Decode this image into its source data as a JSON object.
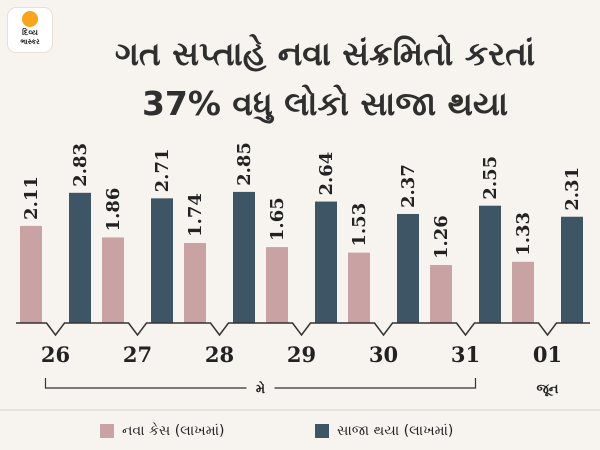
{
  "logo": {
    "line1": "દિવ્ય",
    "line2": "ભાસ્કર"
  },
  "header": {
    "title_line1": "ગત સપ્તાહે નવા સંક્રમિતો કરતાં",
    "title_line2": "37% વધુ લોકો સાજા થયા"
  },
  "colors": {
    "new_cases": "#c9a2a3",
    "recovered": "#3d5564"
  },
  "chart_data": {
    "type": "bar",
    "categories": [
      "26",
      "27",
      "28",
      "29",
      "30",
      "31",
      "01"
    ],
    "series": [
      {
        "name": "નવા કેસ (લાખમાં)",
        "values": [
          2.11,
          1.86,
          1.74,
          1.65,
          1.53,
          1.26,
          1.33
        ]
      },
      {
        "name": "સાજા થયા (લાખમાં)",
        "values": [
          2.83,
          2.71,
          2.85,
          2.64,
          2.37,
          2.55,
          2.31
        ]
      }
    ],
    "value_labels": {
      "new_cases": [
        "2.11",
        "1.86",
        "1.74",
        "1.65",
        "1.53",
        "1.26",
        "1.33"
      ],
      "recovered": [
        "2.83",
        "2.71",
        "2.85",
        "2.64",
        "2.37",
        "2.55",
        "2.31"
      ]
    },
    "month_groups": [
      {
        "label": "મે",
        "from": "26",
        "to": "31"
      },
      {
        "label": "જૂન",
        "from": "01",
        "to": "01"
      }
    ],
    "ylim": [
      0,
      3
    ],
    "legend_position": "bottom"
  }
}
